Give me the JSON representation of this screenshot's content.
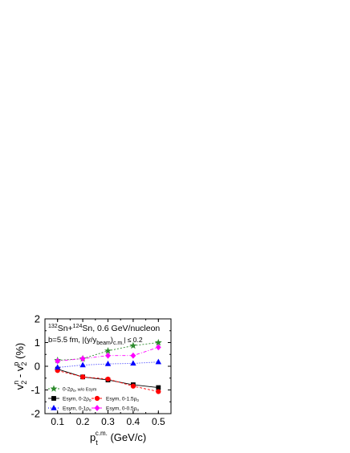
{
  "chart_data": {
    "type": "line",
    "annotations": {
      "reaction": {
        "mass_a": "132",
        "sn_a": "Sn+",
        "mass_b": "124",
        "sn_b": "Sn, 0.6 GeV/nucleon"
      },
      "impact": {
        "b": "b=5.5 fm, |(y/y",
        "beam": "beam",
        "close": ")",
        "cm": "c.m.",
        "cut": "| ≤ 0.2"
      }
    },
    "y_axis_label": {
      "v": "v",
      "n_sup": "n",
      "two_sub": "2",
      "minus": " - v",
      "p_sup": "p",
      "two_sub2": "2",
      "unit": " (%)"
    },
    "x_axis_label": {
      "p": "p",
      "t_sub": "t",
      "cm_sup": "c.m.",
      "unit": " (GeV/c)"
    },
    "xlim": [
      0.05,
      0.55
    ],
    "ylim": [
      -2,
      2
    ],
    "x_ticks": [
      0.1,
      0.2,
      0.3,
      0.4,
      0.5
    ],
    "y_ticks": [
      -2,
      -1,
      0,
      1,
      2
    ],
    "x": [
      0.1,
      0.2,
      0.3,
      0.4,
      0.5
    ],
    "legend_position": "bottom-left",
    "series": [
      {
        "name": "0-2ρ0, w/o Esym",
        "label_main": "0-2ρ",
        "label_sub": "0",
        "label_suffix": ", w/o Esym",
        "color": "#2e8b2e",
        "marker": "star",
        "dash": "2,2",
        "values": [
          0.25,
          0.32,
          0.65,
          0.87,
          1.0
        ]
      },
      {
        "name": "Esym, 0-2ρ0",
        "label_main": "Esym, 0-2ρ",
        "label_sub": "0",
        "label_suffix": "",
        "color": "#000000",
        "marker": "square",
        "dash": "none",
        "values": [
          -0.12,
          -0.45,
          -0.58,
          -0.78,
          -0.9
        ]
      },
      {
        "name": "Esym, 0-1.5ρ0",
        "label_main": "Esym, 0-1.5ρ",
        "label_sub": "0",
        "label_suffix": "",
        "color": "#ff0000",
        "marker": "circle",
        "dash": "3,2",
        "values": [
          -0.18,
          -0.45,
          -0.54,
          -0.84,
          -1.07
        ]
      },
      {
        "name": "Esym, 0-1ρ0",
        "label_main": "Esym, 0-1ρ",
        "label_sub": "0",
        "label_suffix": "",
        "color": "#0000ff",
        "marker": "triangle",
        "dash": "1,2",
        "values": [
          -0.05,
          0.05,
          0.1,
          0.12,
          0.18
        ]
      },
      {
        "name": "Esym, 0-0.5ρ0",
        "label_main": "Esym, 0-0.5ρ",
        "label_sub": "0",
        "label_suffix": "",
        "color": "#ff00ff",
        "marker": "diamond",
        "dash": "4,2,1,2",
        "values": [
          0.22,
          0.32,
          0.45,
          0.45,
          0.8
        ]
      }
    ]
  }
}
